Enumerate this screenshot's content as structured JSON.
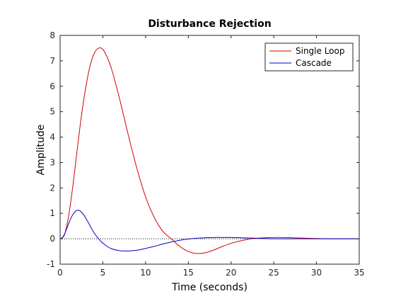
{
  "chart_data": {
    "type": "line",
    "title": "Disturbance Rejection",
    "xlabel": "Time (seconds)",
    "ylabel": "Amplitude",
    "xlim": [
      0,
      35
    ],
    "ylim": [
      -1,
      8
    ],
    "xticks": [
      0,
      5,
      10,
      15,
      20,
      25,
      30,
      35
    ],
    "yticks": [
      -1,
      0,
      1,
      2,
      3,
      4,
      5,
      6,
      7,
      8
    ],
    "grid": false,
    "legend_position": "top-right",
    "reference_line": {
      "y": 0,
      "style": "dotted",
      "color": "#000000"
    },
    "series": [
      {
        "name": "Single Loop",
        "color": "#d40000",
        "x": [
          0,
          0.5,
          1,
          1.5,
          2,
          2.5,
          3,
          3.5,
          4,
          4.5,
          5,
          5.5,
          6,
          6.5,
          7,
          7.5,
          8,
          9,
          10,
          11,
          12,
          13,
          14,
          15,
          16,
          17,
          18,
          19,
          20,
          21,
          22,
          23,
          24,
          25,
          26,
          27,
          28,
          30,
          32,
          35
        ],
        "y": [
          0,
          0.15,
          0.9,
          2.1,
          3.5,
          4.85,
          5.95,
          6.8,
          7.3,
          7.5,
          7.45,
          7.15,
          6.7,
          6.1,
          5.45,
          4.75,
          4.05,
          2.75,
          1.65,
          0.85,
          0.3,
          0.0,
          -0.3,
          -0.5,
          -0.58,
          -0.55,
          -0.44,
          -0.3,
          -0.18,
          -0.09,
          -0.02,
          0.02,
          0.04,
          0.05,
          0.05,
          0.04,
          0.03,
          0.01,
          0.0,
          0.0
        ]
      },
      {
        "name": "Cascade",
        "color": "#0000cc",
        "x": [
          0,
          0.3,
          0.6,
          1,
          1.4,
          1.8,
          2.1,
          2.4,
          2.8,
          3.2,
          3.6,
          4,
          4.5,
          5,
          5.5,
          6,
          6.5,
          7,
          7.5,
          8,
          9,
          10,
          11,
          12,
          13,
          14,
          15,
          16,
          17,
          18,
          19,
          20,
          21,
          22,
          23,
          24,
          25,
          26,
          27,
          28,
          30,
          32,
          35
        ],
        "y": [
          0,
          0.05,
          0.25,
          0.6,
          0.9,
          1.08,
          1.12,
          1.08,
          0.92,
          0.7,
          0.45,
          0.22,
          0.0,
          -0.17,
          -0.3,
          -0.39,
          -0.44,
          -0.47,
          -0.48,
          -0.48,
          -0.45,
          -0.38,
          -0.3,
          -0.21,
          -0.13,
          -0.06,
          -0.01,
          0.02,
          0.04,
          0.05,
          0.05,
          0.05,
          0.04,
          0.03,
          0.02,
          0.01,
          0.0,
          0.0,
          0.0,
          0.0,
          0.0,
          0.0,
          0.0
        ]
      }
    ]
  }
}
